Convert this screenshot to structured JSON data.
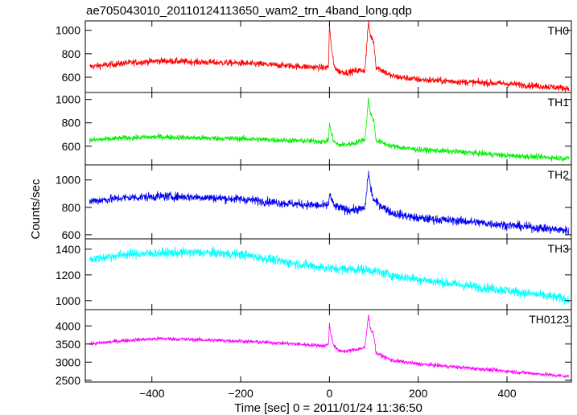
{
  "chart_data": {
    "type": "line",
    "title": "ae705043010_20110124113650_wam2_trn_4band_long.qdp",
    "xlabel": "Time [sec] 0 = 2011/01/24 11:36:50",
    "ylabel": "Counts/sec",
    "xlim": [
      -550,
      545
    ],
    "x_ticks": [
      -400,
      -200,
      0,
      200,
      400
    ],
    "x_tick_labels": [
      "−400",
      "−200",
      "0",
      "200",
      "400"
    ],
    "grid": false,
    "panels": [
      {
        "label": "TH0",
        "color": "#ff0000",
        "ylim": [
          470,
          1080
        ],
        "y_ticks": [
          600,
          800,
          1000
        ],
        "y_tick_labels": [
          "600",
          "800",
          "1000"
        ],
        "noise": 28,
        "profile": [
          [
            -540,
            690
          ],
          [
            -460,
            720
          ],
          [
            -380,
            740
          ],
          [
            -300,
            730
          ],
          [
            -200,
            720
          ],
          [
            -100,
            700
          ],
          [
            -10,
            680
          ],
          [
            -2,
            690
          ],
          [
            0,
            1050
          ],
          [
            3,
            900
          ],
          [
            10,
            700
          ],
          [
            20,
            650
          ],
          [
            40,
            640
          ],
          [
            60,
            655
          ],
          [
            80,
            660
          ],
          [
            88,
            1070
          ],
          [
            92,
            960
          ],
          [
            100,
            900
          ],
          [
            105,
            690
          ],
          [
            140,
            610
          ],
          [
            200,
            580
          ],
          [
            300,
            560
          ],
          [
            400,
            545
          ],
          [
            540,
            505
          ]
        ]
      },
      {
        "label": "TH1",
        "color": "#00ee00",
        "ylim": [
          440,
          1060
        ],
        "y_ticks": [
          600,
          800,
          1000
        ],
        "y_tick_labels": [
          "600",
          "800",
          "1000"
        ],
        "noise": 24,
        "profile": [
          [
            -540,
            650
          ],
          [
            -460,
            670
          ],
          [
            -380,
            680
          ],
          [
            -300,
            670
          ],
          [
            -200,
            665
          ],
          [
            -100,
            650
          ],
          [
            -10,
            640
          ],
          [
            -2,
            650
          ],
          [
            0,
            800
          ],
          [
            3,
            720
          ],
          [
            10,
            640
          ],
          [
            20,
            610
          ],
          [
            40,
            615
          ],
          [
            60,
            630
          ],
          [
            80,
            660
          ],
          [
            88,
            1010
          ],
          [
            92,
            880
          ],
          [
            100,
            820
          ],
          [
            105,
            650
          ],
          [
            140,
            600
          ],
          [
            200,
            570
          ],
          [
            300,
            550
          ],
          [
            400,
            520
          ],
          [
            540,
            495
          ]
        ]
      },
      {
        "label": "TH2",
        "color": "#0000ee",
        "ylim": [
          570,
          1110
        ],
        "y_ticks": [
          600,
          800,
          1000
        ],
        "y_tick_labels": [
          "600",
          "800",
          "1000"
        ],
        "noise": 32,
        "profile": [
          [
            -540,
            845
          ],
          [
            -460,
            870
          ],
          [
            -380,
            880
          ],
          [
            -300,
            875
          ],
          [
            -200,
            860
          ],
          [
            -100,
            830
          ],
          [
            -10,
            810
          ],
          [
            -2,
            820
          ],
          [
            0,
            900
          ],
          [
            10,
            810
          ],
          [
            40,
            780
          ],
          [
            80,
            790
          ],
          [
            88,
            1060
          ],
          [
            92,
            950
          ],
          [
            100,
            850
          ],
          [
            140,
            760
          ],
          [
            200,
            720
          ],
          [
            300,
            700
          ],
          [
            400,
            670
          ],
          [
            540,
            630
          ]
        ]
      },
      {
        "label": "TH3",
        "color": "#00ffff",
        "ylim": [
          930,
          1480
        ],
        "y_ticks": [
          1000,
          1200,
          1400
        ],
        "y_tick_labels": [
          "1000",
          "1200",
          "1400"
        ],
        "noise": 38,
        "profile": [
          [
            -540,
            1320
          ],
          [
            -460,
            1360
          ],
          [
            -380,
            1370
          ],
          [
            -300,
            1375
          ],
          [
            -200,
            1360
          ],
          [
            -100,
            1300
          ],
          [
            0,
            1250
          ],
          [
            88,
            1240
          ],
          [
            150,
            1190
          ],
          [
            300,
            1120
          ],
          [
            400,
            1080
          ],
          [
            540,
            1010
          ]
        ]
      },
      {
        "label": "TH0123",
        "color": "#ff00ff",
        "ylim": [
          2450,
          4450
        ],
        "y_ticks": [
          2500,
          3000,
          3500,
          4000
        ],
        "y_tick_labels": [
          "2500",
          "3000",
          "3500",
          "4000"
        ],
        "noise": 55,
        "profile": [
          [
            -540,
            3500
          ],
          [
            -460,
            3600
          ],
          [
            -380,
            3650
          ],
          [
            -300,
            3620
          ],
          [
            -200,
            3580
          ],
          [
            -100,
            3520
          ],
          [
            -10,
            3450
          ],
          [
            -2,
            3500
          ],
          [
            0,
            4050
          ],
          [
            3,
            3800
          ],
          [
            10,
            3450
          ],
          [
            20,
            3320
          ],
          [
            40,
            3300
          ],
          [
            60,
            3350
          ],
          [
            80,
            3400
          ],
          [
            88,
            4300
          ],
          [
            92,
            3950
          ],
          [
            100,
            3750
          ],
          [
            105,
            3250
          ],
          [
            140,
            3050
          ],
          [
            200,
            2950
          ],
          [
            300,
            2850
          ],
          [
            400,
            2750
          ],
          [
            540,
            2600
          ]
        ]
      }
    ]
  }
}
